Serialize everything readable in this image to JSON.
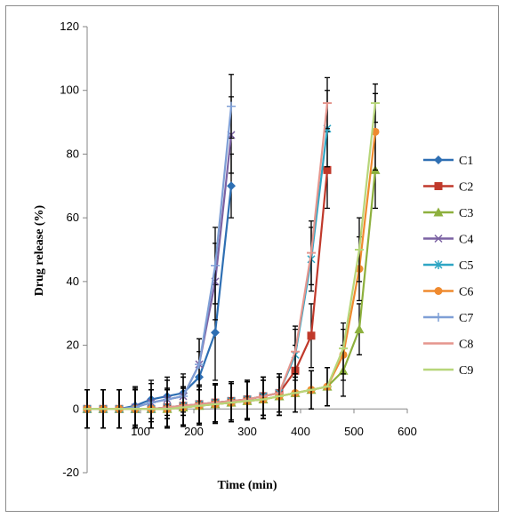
{
  "chart_data": {
    "type": "line",
    "title": "",
    "xlabel": "Time (min)",
    "ylabel": "Drug release (%)",
    "xlim": [
      0,
      600
    ],
    "ylim": [
      -20,
      120
    ],
    "xticks": [
      100,
      200,
      300,
      400,
      500,
      600
    ],
    "xtick_labels": [
      "100",
      "200",
      "300",
      "400",
      "500",
      "600"
    ],
    "yticks": [
      -20,
      0,
      20,
      40,
      60,
      80,
      100,
      120
    ],
    "ytick_labels": [
      "-20",
      "0",
      "20",
      "40",
      "60",
      "80",
      "100",
      "120"
    ],
    "grid": false,
    "legend_position": "right",
    "series": [
      {
        "name": "C1",
        "color": "#2e6fb3",
        "marker": "diamond",
        "x": [
          0,
          30,
          60,
          90,
          120,
          150,
          180,
          210,
          240,
          270
        ],
        "y": [
          0,
          0,
          0,
          1,
          3,
          4,
          5,
          10,
          24,
          70
        ],
        "err": [
          6,
          6,
          6,
          6,
          6,
          6,
          6,
          8,
          15,
          10
        ]
      },
      {
        "name": "C2",
        "color": "#c0392b",
        "marker": "square",
        "x": [
          0,
          30,
          60,
          90,
          120,
          150,
          180,
          210,
          240,
          270,
          300,
          330,
          360,
          390,
          420,
          450
        ],
        "y": [
          0,
          0,
          0,
          0,
          0,
          0.5,
          1,
          1.5,
          2,
          2.5,
          3,
          4,
          5,
          12,
          23,
          75
        ],
        "err": [
          6,
          6,
          6,
          6,
          6,
          6,
          6,
          6,
          6,
          6,
          6,
          6,
          6,
          8,
          10,
          12
        ]
      },
      {
        "name": "C3",
        "color": "#8db03d",
        "marker": "triangle",
        "x": [
          0,
          30,
          60,
          90,
          120,
          150,
          180,
          210,
          240,
          270,
          300,
          330,
          360,
          390,
          420,
          450,
          480,
          510,
          540
        ],
        "y": [
          0,
          0,
          0,
          0,
          0,
          0,
          0.5,
          1,
          1.5,
          2,
          2.5,
          3,
          4,
          5,
          6,
          7,
          12,
          25,
          75
        ],
        "err": [
          6,
          6,
          6,
          6,
          6,
          6,
          6,
          6,
          6,
          6,
          6,
          6,
          6,
          6,
          6,
          6,
          8,
          8,
          12
        ]
      },
      {
        "name": "C4",
        "color": "#7b62a3",
        "marker": "x",
        "x": [
          0,
          30,
          60,
          90,
          120,
          150,
          180,
          210,
          240,
          270
        ],
        "y": [
          0,
          0,
          0,
          0.5,
          2,
          3,
          4,
          14,
          40,
          86
        ],
        "err": [
          6,
          6,
          6,
          6,
          6,
          6,
          6,
          8,
          12,
          12
        ]
      },
      {
        "name": "C5",
        "color": "#2fa6c4",
        "marker": "star",
        "x": [
          0,
          30,
          60,
          90,
          120,
          150,
          180,
          210,
          240,
          270,
          300,
          330,
          360,
          390,
          420,
          450
        ],
        "y": [
          0,
          0,
          0,
          0,
          0,
          0.5,
          1,
          1.5,
          2,
          2.5,
          3,
          4,
          5,
          17,
          47,
          88
        ],
        "err": [
          6,
          6,
          6,
          6,
          6,
          6,
          6,
          6,
          6,
          6,
          6,
          6,
          6,
          8,
          10,
          12
        ]
      },
      {
        "name": "C6",
        "color": "#ef8a2f",
        "marker": "circle",
        "x": [
          0,
          30,
          60,
          90,
          120,
          150,
          180,
          210,
          240,
          270,
          300,
          330,
          360,
          390,
          420,
          450,
          480,
          510,
          540
        ],
        "y": [
          0,
          0,
          0,
          0,
          0,
          0,
          0.5,
          1,
          1.5,
          2,
          2.5,
          3,
          4,
          5,
          6,
          7,
          17,
          44,
          87
        ],
        "err": [
          6,
          6,
          6,
          6,
          6,
          6,
          6,
          6,
          6,
          6,
          6,
          6,
          6,
          6,
          6,
          6,
          8,
          10,
          12
        ]
      },
      {
        "name": "C7",
        "color": "#7f9fd6",
        "marker": "plus",
        "x": [
          0,
          30,
          60,
          90,
          120,
          150,
          180,
          210,
          240,
          270
        ],
        "y": [
          0,
          0,
          0,
          0.5,
          2,
          3,
          4,
          14,
          45,
          95
        ],
        "err": [
          6,
          6,
          6,
          6,
          6,
          6,
          6,
          8,
          12,
          10
        ]
      },
      {
        "name": "C8",
        "color": "#e5968e",
        "marker": "dash",
        "x": [
          0,
          30,
          60,
          90,
          120,
          150,
          180,
          210,
          240,
          270,
          300,
          330,
          360,
          390,
          420,
          450
        ],
        "y": [
          0,
          0,
          0,
          0,
          0,
          0.5,
          1,
          1.5,
          2,
          2.5,
          3,
          4,
          5,
          18,
          49,
          96
        ],
        "err": [
          6,
          6,
          6,
          6,
          6,
          6,
          6,
          6,
          6,
          6,
          6,
          6,
          6,
          8,
          10,
          8
        ]
      },
      {
        "name": "C9",
        "color": "#b7d67a",
        "marker": "dash",
        "x": [
          0,
          30,
          60,
          90,
          120,
          150,
          180,
          210,
          240,
          270,
          300,
          330,
          360,
          390,
          420,
          450,
          480,
          510,
          540
        ],
        "y": [
          0,
          0,
          0,
          0,
          0,
          0,
          0.5,
          1,
          1.5,
          2,
          2.5,
          3,
          4,
          5,
          6,
          7,
          19,
          50,
          96
        ],
        "err": [
          6,
          6,
          6,
          6,
          6,
          6,
          6,
          6,
          6,
          6,
          6,
          6,
          6,
          6,
          6,
          6,
          8,
          10,
          6
        ]
      }
    ]
  }
}
